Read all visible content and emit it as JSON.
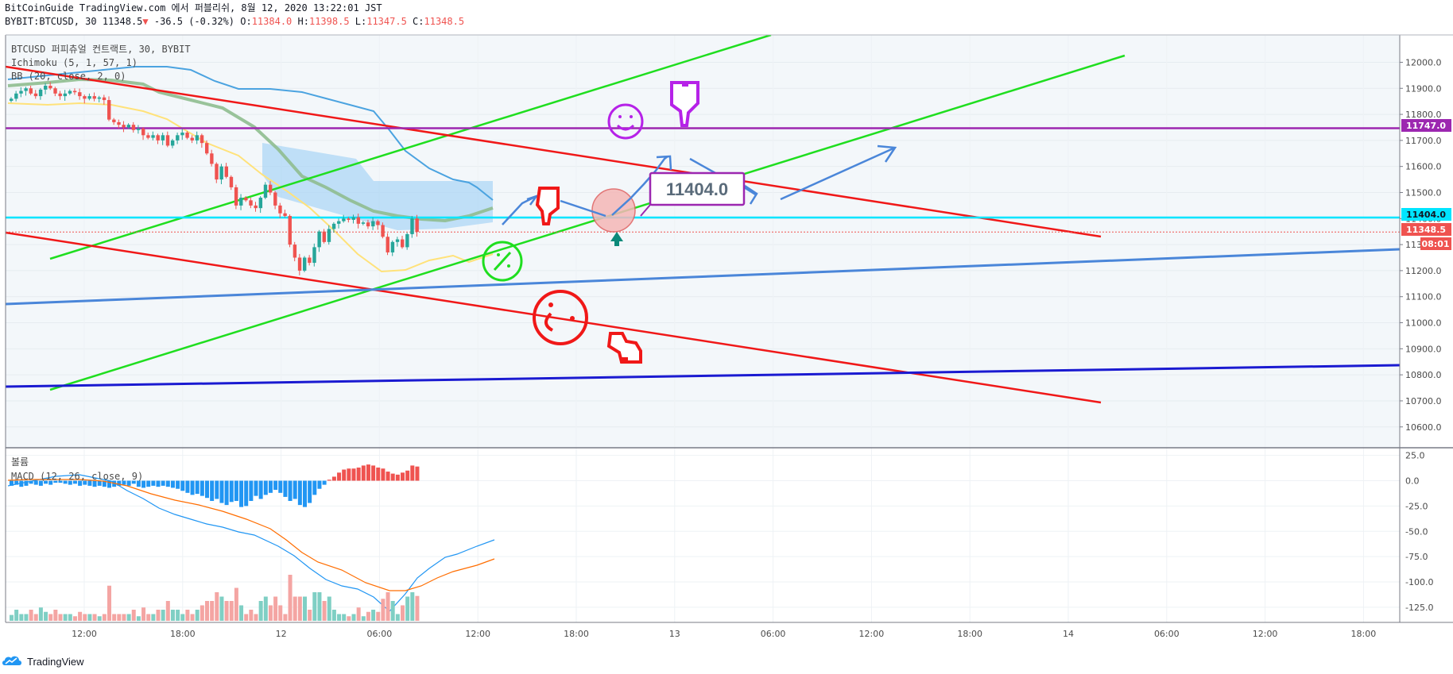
{
  "header": {
    "line1": "BitCoinGuide TradingView.com 에서 퍼블리쉬, 8월 12, 2020 13:22:01 JST",
    "symbol": "BYBIT:BTCUSD, 30 11348.5",
    "change_arrow": "▼",
    "change": "-36.5 (-0.32%)",
    "o_label": "O:",
    "o_value": "11384.0",
    "h_label": "H:",
    "h_value": "11398.5",
    "l_label": "L:",
    "l_value": "11347.5",
    "c_label": "C:",
    "c_value": "11348.5"
  },
  "legend": {
    "title": "BTCUSD 퍼피츄얼 컨트랙트, 30, BYBIT",
    "ichimoku": "Ichimoku (5, 1, 57, 1)",
    "bb": "BB (20, close, 2, 0)",
    "volume": "볼륨",
    "macd": "MACD (12, 26, close, 9)"
  },
  "annotation_box": "11404.0",
  "price_tags": {
    "purple": "11747.0",
    "cyan": "11404.0",
    "last": "11348.5",
    "countdown": "08:01"
  },
  "colors": {
    "up": "#26a69a",
    "down": "#ef5350",
    "purple": "#9c27b0",
    "cyan": "#00e5ff",
    "green": "#1fde1f",
    "red": "#f01818",
    "blue": "#4a86d9",
    "navy": "#1a1ad1"
  },
  "footer": {
    "brand": "TradingView"
  },
  "chart_data": [
    {
      "type": "candlestick",
      "title": "BTCUSD 퍼피츄얼 컨트랙트, 30, BYBIT",
      "x_ticks": [
        "12:00",
        "18:00",
        "12",
        "06:00",
        "12:00",
        "18:00",
        "13",
        "06:00",
        "12:00",
        "18:00",
        "14",
        "06:00",
        "12:00",
        "18:00"
      ],
      "y_ticks": [
        12000,
        11900,
        11800,
        11700,
        11600,
        11500,
        11400,
        11300,
        11200,
        11100,
        11000,
        10900,
        10800,
        10700,
        10600
      ],
      "ylim": [
        10520,
        12105
      ],
      "horizontal_levels": [
        11747.0,
        11404.0
      ],
      "last_price": 11348.5,
      "close_series": [
        11860,
        11880,
        11890,
        11900,
        11880,
        11870,
        11895,
        11910,
        11900,
        11880,
        11870,
        11880,
        11890,
        11885,
        11870,
        11860,
        11870,
        11860,
        11865,
        11855,
        11780,
        11770,
        11760,
        11750,
        11760,
        11740,
        11745,
        11720,
        11710,
        11720,
        11700,
        11720,
        11680,
        11700,
        11720,
        11730,
        11710,
        11700,
        11720,
        11690,
        11650,
        11610,
        11550,
        11600,
        11560,
        11520,
        11450,
        11480,
        11470,
        11450,
        11440,
        11480,
        11530,
        11500,
        11450,
        11420,
        11410,
        11300,
        11250,
        11200,
        11250,
        11230,
        11290,
        11350,
        11310,
        11360,
        11380,
        11390,
        11400,
        11395,
        11405,
        11380,
        11385,
        11370,
        11390,
        11375,
        11330,
        11270,
        11310,
        11320,
        11290,
        11340,
        11400,
        11348.5
      ]
    },
    {
      "type": "bar",
      "title": "MACD (12, 26, close, 9)",
      "y_ticks": [
        25.0,
        0.0,
        -25.0,
        -50.0,
        -75.0,
        -100.0,
        -125.0
      ],
      "ylim": [
        -140,
        31
      ],
      "histogram": [
        -5,
        -4,
        -6,
        -5,
        -3,
        -4,
        -5,
        -3,
        -4,
        -2,
        -2,
        -3,
        -4,
        -3,
        -5,
        -4,
        -5,
        -6,
        -5,
        -6,
        -7,
        -6,
        -5,
        -4,
        -5,
        -3,
        -6,
        -7,
        -6,
        -5,
        -6,
        -5,
        -6,
        -7,
        -8,
        -10,
        -12,
        -14,
        -13,
        -15,
        -17,
        -20,
        -18,
        -22,
        -24,
        -21,
        -20,
        -26,
        -25,
        -20,
        -15,
        -18,
        -14,
        -12,
        -9,
        -12,
        -16,
        -20,
        -18,
        -24,
        -26,
        -22,
        -14,
        -8,
        -4,
        1,
        4,
        8,
        11,
        12,
        12,
        13,
        15,
        16,
        15,
        13,
        12,
        9,
        7,
        6,
        8,
        10,
        15,
        14
      ]
    }
  ]
}
